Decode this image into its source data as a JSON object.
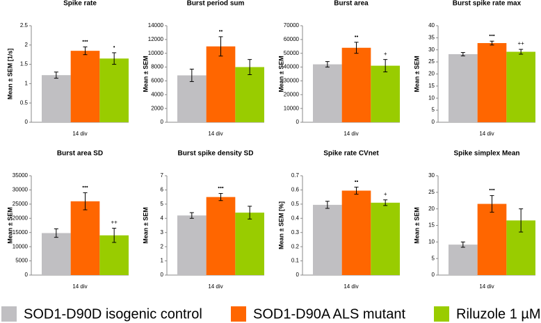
{
  "chart_data": [
    {
      "type": "bar",
      "title": "Spike rate",
      "ylabel": "Mean ± SEM [1/s]",
      "categories": [
        "14 div"
      ],
      "ylim": [
        0,
        2.5
      ],
      "yticks": [
        0,
        0.5,
        1,
        1.5,
        2,
        2.5
      ],
      "series": [
        {
          "name": "SOD1-D90D isogenic control",
          "color": "#c0bfc2",
          "values": [
            1.22
          ],
          "errors": [
            0.08
          ]
        },
        {
          "name": "SOD1-D90A ALS mutant",
          "color": "#ff6600",
          "values": [
            1.85
          ],
          "errors": [
            0.1
          ],
          "annotation": "•••"
        },
        {
          "name": "Riluzole 1 µM",
          "color": "#99cc00",
          "values": [
            1.65
          ],
          "errors": [
            0.15
          ],
          "annotation": "•"
        }
      ]
    },
    {
      "type": "bar",
      "title": "Burst period sum",
      "ylabel": "Mean ± SEM",
      "categories": [
        "14 div"
      ],
      "ylim": [
        0,
        14000
      ],
      "yticks": [
        0,
        2000,
        4000,
        6000,
        8000,
        10000,
        12000,
        14000
      ],
      "series": [
        {
          "name": "SOD1-D90D isogenic control",
          "color": "#c0bfc2",
          "values": [
            6800
          ],
          "errors": [
            900
          ]
        },
        {
          "name": "SOD1-D90A ALS mutant",
          "color": "#ff6600",
          "values": [
            11000
          ],
          "errors": [
            1400
          ],
          "annotation": "••"
        },
        {
          "name": "Riluzole 1 µM",
          "color": "#99cc00",
          "values": [
            8000
          ],
          "errors": [
            1100
          ]
        }
      ]
    },
    {
      "type": "bar",
      "title": "Burst area",
      "ylabel": "Mean ± SEM",
      "categories": [
        "14 div"
      ],
      "ylim": [
        0,
        70000
      ],
      "yticks": [
        0,
        10000,
        20000,
        30000,
        40000,
        50000,
        60000,
        70000
      ],
      "series": [
        {
          "name": "SOD1-D90D isogenic control",
          "color": "#c0bfc2",
          "values": [
            42000
          ],
          "errors": [
            2000
          ]
        },
        {
          "name": "SOD1-D90A ALS mutant",
          "color": "#ff6600",
          "values": [
            54000
          ],
          "errors": [
            4000
          ],
          "annotation": "••"
        },
        {
          "name": "Riluzole 1 µM",
          "color": "#99cc00",
          "values": [
            41000
          ],
          "errors": [
            4500
          ],
          "annotation": "+"
        }
      ]
    },
    {
      "type": "bar",
      "title": "Burst spike rate max",
      "ylabel": "Mean ± SEM",
      "categories": [
        "14 div"
      ],
      "ylim": [
        0,
        40
      ],
      "yticks": [
        0,
        5,
        10,
        15,
        20,
        25,
        30,
        35,
        40
      ],
      "series": [
        {
          "name": "SOD1-D90D isogenic control",
          "color": "#c0bfc2",
          "values": [
            28.2
          ],
          "errors": [
            0.7
          ]
        },
        {
          "name": "SOD1-D90A ALS mutant",
          "color": "#ff6600",
          "values": [
            32.8
          ],
          "errors": [
            0.8
          ],
          "annotation": "•••"
        },
        {
          "name": "Riluzole 1 µM",
          "color": "#99cc00",
          "values": [
            29.2
          ],
          "errors": [
            1
          ],
          "annotation": "++"
        }
      ]
    },
    {
      "type": "bar",
      "title": "Burst area SD",
      "ylabel": "Mean ± SEM",
      "categories": [
        "14 div"
      ],
      "ylim": [
        0,
        35000
      ],
      "yticks": [
        0,
        5000,
        10000,
        15000,
        20000,
        25000,
        30000,
        35000
      ],
      "series": [
        {
          "name": "SOD1-D90D isogenic control",
          "color": "#c0bfc2",
          "values": [
            14800
          ],
          "errors": [
            1500
          ]
        },
        {
          "name": "SOD1-D90A ALS mutant",
          "color": "#ff6600",
          "values": [
            26000
          ],
          "errors": [
            3000
          ],
          "annotation": "•••"
        },
        {
          "name": "Riluzole 1 µM",
          "color": "#99cc00",
          "values": [
            14000
          ],
          "errors": [
            2500
          ],
          "annotation": "++"
        }
      ]
    },
    {
      "type": "bar",
      "title": "Burst spike density SD",
      "ylabel": "Mean ± SEM",
      "categories": [
        "14 div"
      ],
      "ylim": [
        0,
        7
      ],
      "yticks": [
        0,
        1,
        2,
        3,
        4,
        5,
        6,
        7
      ],
      "series": [
        {
          "name": "SOD1-D90D isogenic control",
          "color": "#c0bfc2",
          "values": [
            4.2
          ],
          "errors": [
            0.2
          ]
        },
        {
          "name": "SOD1-D90A ALS mutant",
          "color": "#ff6600",
          "values": [
            5.5
          ],
          "errors": [
            0.25
          ],
          "annotation": "•••"
        },
        {
          "name": "Riluzole 1 µM",
          "color": "#99cc00",
          "values": [
            4.4
          ],
          "errors": [
            0.45
          ]
        }
      ]
    },
    {
      "type": "bar",
      "title": "Spike rate CVnet",
      "ylabel": "Mean ± SEM [%]",
      "categories": [
        "14 div"
      ],
      "ylim": [
        0,
        0.7
      ],
      "yticks": [
        0,
        0.1,
        0.2,
        0.3,
        0.4,
        0.5,
        0.6,
        0.7
      ],
      "series": [
        {
          "name": "SOD1-D90D isogenic control",
          "color": "#c0bfc2",
          "values": [
            0.495
          ],
          "errors": [
            0.025
          ]
        },
        {
          "name": "SOD1-D90A ALS mutant",
          "color": "#ff6600",
          "values": [
            0.595
          ],
          "errors": [
            0.025
          ],
          "annotation": "••"
        },
        {
          "name": "Riluzole 1 µM",
          "color": "#99cc00",
          "values": [
            0.51
          ],
          "errors": [
            0.02
          ],
          "annotation": "+"
        }
      ]
    },
    {
      "type": "bar",
      "title": "Spike simplex Mean",
      "ylabel": "Mean ± SEM",
      "categories": [
        "14 div"
      ],
      "ylim": [
        0,
        30
      ],
      "yticks": [
        0,
        5,
        10,
        15,
        20,
        25,
        30
      ],
      "series": [
        {
          "name": "SOD1-D90D isogenic control",
          "color": "#c0bfc2",
          "values": [
            9.2
          ],
          "errors": [
            0.8
          ]
        },
        {
          "name": "SOD1-D90A ALS mutant",
          "color": "#ff6600",
          "values": [
            21.5
          ],
          "errors": [
            2.5
          ],
          "annotation": "•••"
        },
        {
          "name": "Riluzole 1 µM",
          "color": "#99cc00",
          "values": [
            16.5
          ],
          "errors": [
            3.5
          ]
        }
      ]
    }
  ]
}
